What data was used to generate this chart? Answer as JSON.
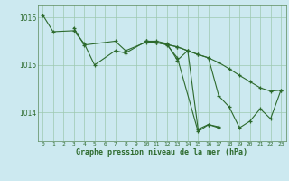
{
  "title": "Graphe pression niveau de la mer (hPa)",
  "background_color": "#cce9f0",
  "grid_color": "#9ec9b0",
  "line_color": "#2d6a2d",
  "ylim": [
    1013.4,
    1016.25
  ],
  "yticks": [
    1014,
    1015,
    1016
  ],
  "xlim": [
    -0.5,
    23.5
  ],
  "hours": [
    0,
    1,
    2,
    3,
    4,
    5,
    6,
    7,
    8,
    9,
    10,
    11,
    12,
    13,
    14,
    15,
    16,
    17,
    18,
    19,
    20,
    21,
    22,
    23
  ],
  "series1_x": [
    0,
    1,
    3,
    4,
    5,
    7,
    8,
    10,
    11,
    12,
    13,
    14,
    15,
    16,
    17
  ],
  "series1_y": [
    1016.05,
    1015.7,
    1015.72,
    1015.45,
    1015.0,
    1015.3,
    1015.25,
    1015.5,
    1015.5,
    1015.45,
    1015.1,
    1015.3,
    1013.65,
    1013.75,
    1013.7
  ],
  "series2_x": [
    3,
    4,
    7,
    8,
    10,
    11,
    12,
    13,
    15,
    16,
    17
  ],
  "series2_y": [
    1015.78,
    1015.42,
    1015.5,
    1015.3,
    1015.48,
    1015.48,
    1015.42,
    1015.15,
    1013.6,
    1013.75,
    1013.68
  ],
  "series3_x": [
    10,
    11,
    12,
    13,
    14,
    15,
    16,
    17,
    18,
    19,
    20,
    21,
    22,
    23
  ],
  "series3_y": [
    1015.5,
    1015.47,
    1015.43,
    1015.38,
    1015.3,
    1015.22,
    1015.15,
    1015.05,
    1014.92,
    1014.78,
    1014.65,
    1014.52,
    1014.45,
    1014.47
  ],
  "series4_x": [
    10,
    11,
    12,
    13,
    14,
    15,
    16,
    17,
    18,
    19,
    20,
    21,
    22,
    23
  ],
  "series4_y": [
    1015.5,
    1015.47,
    1015.43,
    1015.38,
    1015.3,
    1015.22,
    1015.15,
    1014.35,
    1014.12,
    1013.68,
    1013.82,
    1014.08,
    1013.87,
    1014.47
  ]
}
